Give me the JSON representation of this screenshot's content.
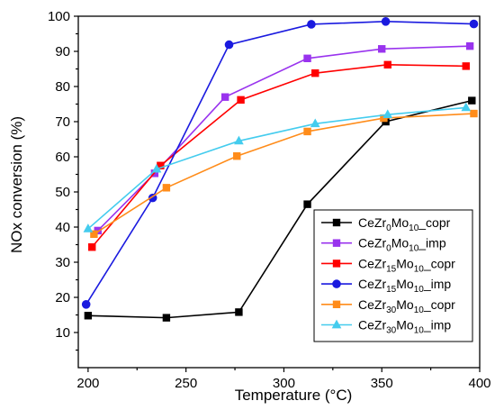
{
  "chart_data": {
    "type": "line",
    "xlabel": "Temperature (°C)",
    "ylabel": "NOx conversion (%)",
    "xlim": [
      195,
      400
    ],
    "ylim": [
      0,
      100
    ],
    "xticks": [
      200,
      250,
      300,
      350,
      400
    ],
    "yticks": [
      10,
      20,
      30,
      40,
      50,
      60,
      70,
      80,
      90,
      100
    ],
    "grid": false,
    "legend_position": "bottom-right",
    "series": [
      {
        "name_parts": [
          [
            "CeZr",
            "n"
          ],
          [
            "0",
            "sub"
          ],
          [
            "Mo",
            "n"
          ],
          [
            "10",
            "sub"
          ],
          [
            "_copr",
            "n"
          ]
        ],
        "color": "#000000",
        "marker": "square",
        "x": [
          200,
          240,
          277,
          312,
          352,
          396
        ],
        "y": [
          14.8,
          14.2,
          15.8,
          46.5,
          70.0,
          76.0
        ]
      },
      {
        "name_parts": [
          [
            "CeZr",
            "n"
          ],
          [
            "0",
            "sub"
          ],
          [
            "Mo",
            "n"
          ],
          [
            "10",
            "sub"
          ],
          [
            "_imp",
            "n"
          ]
        ],
        "color": "#9933ee",
        "marker": "square",
        "x": [
          205,
          234,
          270,
          312,
          350,
          395
        ],
        "y": [
          39.0,
          55.3,
          77.0,
          88.0,
          90.7,
          91.5
        ]
      },
      {
        "name_parts": [
          [
            "CeZr",
            "n"
          ],
          [
            "15",
            "sub"
          ],
          [
            "Mo",
            "n"
          ],
          [
            "10",
            "sub"
          ],
          [
            "_copr",
            "n"
          ]
        ],
        "color": "#ff0000",
        "marker": "square",
        "x": [
          202,
          237,
          278,
          316,
          353,
          393
        ],
        "y": [
          34.3,
          57.5,
          76.2,
          83.8,
          86.2,
          85.8
        ]
      },
      {
        "name_parts": [
          [
            "CeZr",
            "n"
          ],
          [
            "15",
            "sub"
          ],
          [
            "Mo",
            "n"
          ],
          [
            "10",
            "sub"
          ],
          [
            "_imp",
            "n"
          ]
        ],
        "color": "#1a1adf",
        "marker": "circle",
        "x": [
          199,
          233,
          272,
          314,
          352,
          397
        ],
        "y": [
          18.0,
          48.3,
          91.9,
          97.7,
          98.5,
          97.8
        ]
      },
      {
        "name_parts": [
          [
            "CeZr",
            "n"
          ],
          [
            "30",
            "sub"
          ],
          [
            "Mo",
            "n"
          ],
          [
            "10",
            "sub"
          ],
          [
            "_copr",
            "n"
          ]
        ],
        "color": "#ff8c1a",
        "marker": "square",
        "x": [
          203,
          240,
          276,
          312,
          351,
          397
        ],
        "y": [
          38.0,
          51.2,
          60.2,
          67.2,
          71.0,
          72.3
        ]
      },
      {
        "name_parts": [
          [
            "CeZr",
            "n"
          ],
          [
            "30",
            "sub"
          ],
          [
            "Mo",
            "n"
          ],
          [
            "10",
            "sub"
          ],
          [
            "_imp",
            "n"
          ]
        ],
        "color": "#44ccee",
        "marker": "triangle",
        "x": [
          200,
          235,
          277,
          316,
          353,
          393
        ],
        "y": [
          39.5,
          56.5,
          64.5,
          69.4,
          72.0,
          74.0
        ]
      }
    ]
  }
}
